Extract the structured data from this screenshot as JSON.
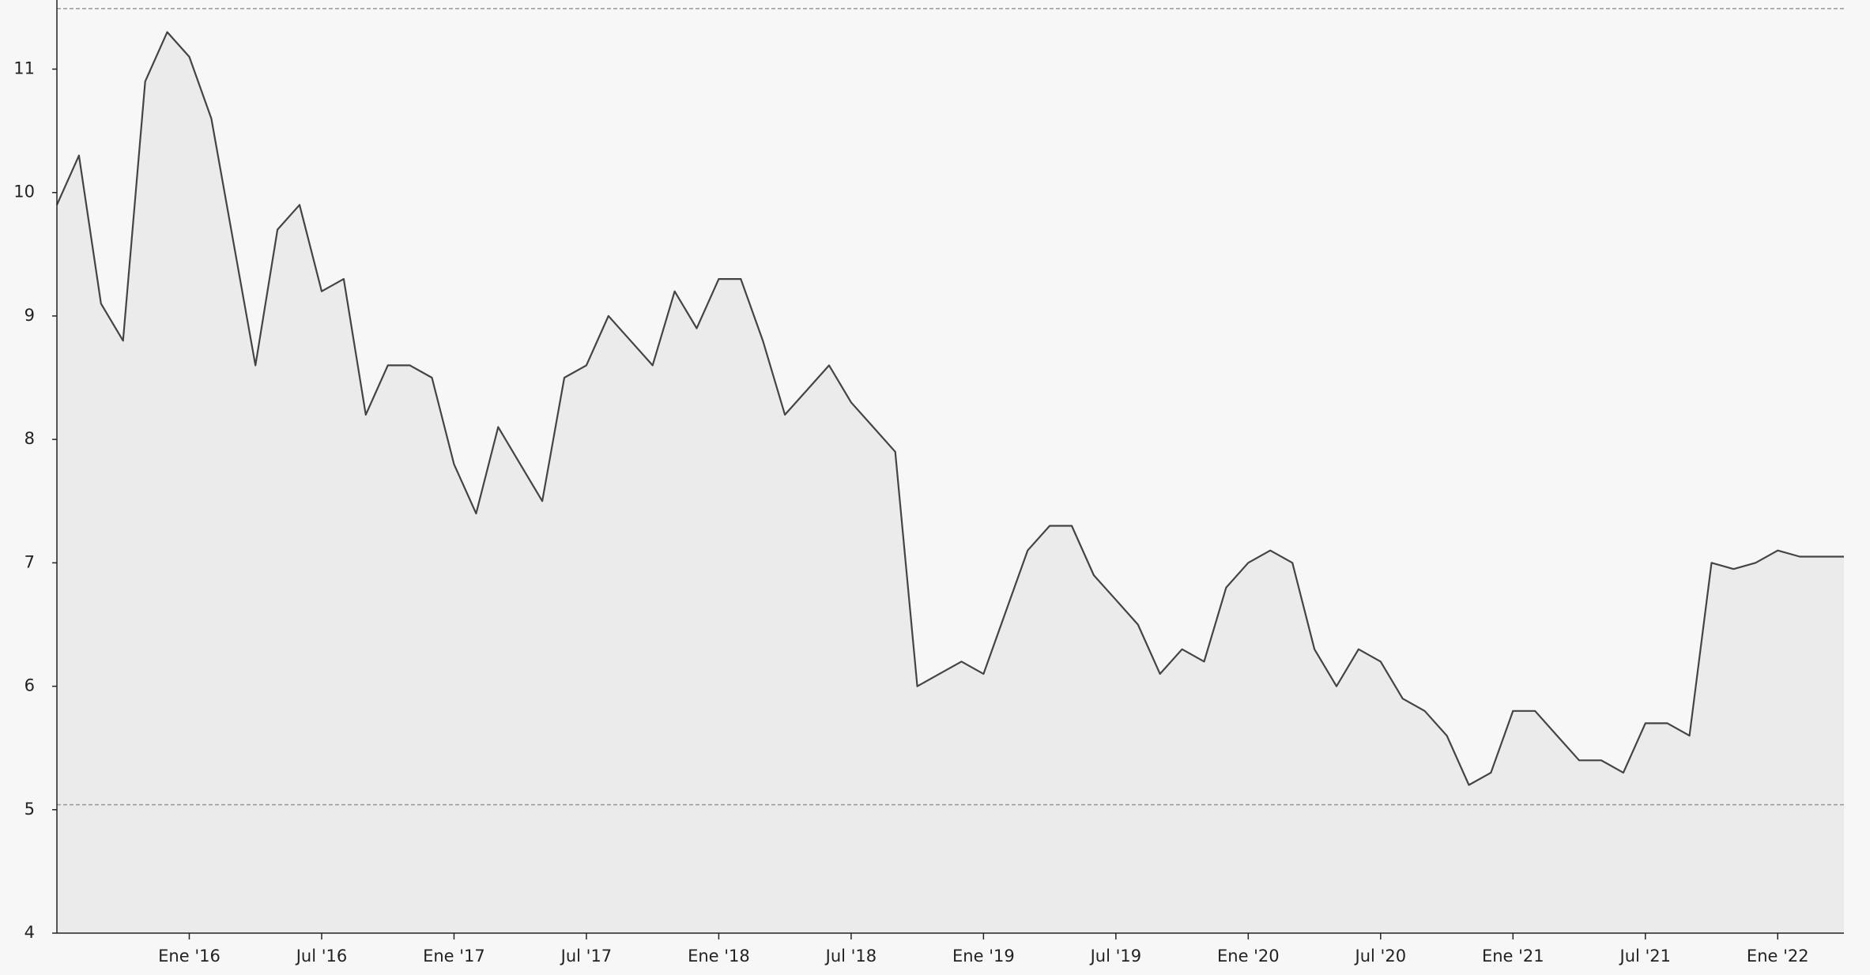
{
  "chart_data": {
    "type": "area",
    "x": [
      "2015-07",
      "2015-08",
      "2015-09",
      "2015-10",
      "2015-11",
      "2015-12",
      "2016-01",
      "2016-02",
      "2016-03",
      "2016-04",
      "2016-05",
      "2016-06",
      "2016-07",
      "2016-08",
      "2016-09",
      "2016-10",
      "2016-11",
      "2016-12",
      "2017-01",
      "2017-02",
      "2017-03",
      "2017-04",
      "2017-05",
      "2017-06",
      "2017-07",
      "2017-08",
      "2017-09",
      "2017-10",
      "2017-11",
      "2017-12",
      "2018-01",
      "2018-02",
      "2018-03",
      "2018-04",
      "2018-05",
      "2018-06",
      "2018-07",
      "2018-08",
      "2018-09",
      "2018-10",
      "2018-11",
      "2018-12",
      "2019-01",
      "2019-02",
      "2019-03",
      "2019-04",
      "2019-05",
      "2019-06",
      "2019-07",
      "2019-08",
      "2019-09",
      "2019-10",
      "2019-11",
      "2019-12",
      "2020-01",
      "2020-02",
      "2020-03",
      "2020-04",
      "2020-05",
      "2020-06",
      "2020-07",
      "2020-08",
      "2020-09",
      "2020-10",
      "2020-11",
      "2020-12",
      "2021-01",
      "2021-02",
      "2021-03",
      "2021-04",
      "2021-05",
      "2021-06",
      "2021-07",
      "2021-08",
      "2021-09",
      "2021-10",
      "2021-11",
      "2021-12",
      "2022-01",
      "2022-02",
      "2022-03",
      "2022-04"
    ],
    "values": [
      9.9,
      10.3,
      9.1,
      8.8,
      10.9,
      11.3,
      11.1,
      10.6,
      9.6,
      8.6,
      9.7,
      9.9,
      9.2,
      9.3,
      8.2,
      8.6,
      8.6,
      8.5,
      7.8,
      7.4,
      8.1,
      7.8,
      7.5,
      8.5,
      8.6,
      9.0,
      8.8,
      8.6,
      9.2,
      8.9,
      9.3,
      9.3,
      8.8,
      8.2,
      8.4,
      8.6,
      8.3,
      8.1,
      7.9,
      6.0,
      6.1,
      6.2,
      6.1,
      6.6,
      7.1,
      7.3,
      7.3,
      6.9,
      6.7,
      6.5,
      6.1,
      6.3,
      6.2,
      6.8,
      7.0,
      7.1,
      7.0,
      6.3,
      6.0,
      6.3,
      6.2,
      5.9,
      5.8,
      5.6,
      5.2,
      5.3,
      5.8,
      5.8,
      5.6,
      5.4,
      5.4,
      5.3,
      5.7,
      5.7,
      5.6,
      7.0,
      6.95,
      7.0,
      7.1,
      7.05,
      7.05,
      7.05
    ],
    "color": "#444444",
    "fill": "#ebebeb",
    "xlim": [
      "2015-07",
      "2022-04"
    ],
    "xticks": [
      {
        "value": "2016-01",
        "label": "Ene '16"
      },
      {
        "value": "2016-07",
        "label": "Jul '16"
      },
      {
        "value": "2017-01",
        "label": "Ene '17"
      },
      {
        "value": "2017-07",
        "label": "Jul '17"
      },
      {
        "value": "2018-01",
        "label": "Ene '18"
      },
      {
        "value": "2018-07",
        "label": "Jul '18"
      },
      {
        "value": "2019-01",
        "label": "Ene '19"
      },
      {
        "value": "2019-07",
        "label": "Jul '19"
      },
      {
        "value": "2020-01",
        "label": "Ene '20"
      },
      {
        "value": "2020-07",
        "label": "Jul '20"
      },
      {
        "value": "2021-01",
        "label": "Ene '21"
      },
      {
        "value": "2021-07",
        "label": "Jul '21"
      },
      {
        "value": "2022-01",
        "label": "Ene '22"
      }
    ],
    "ylim": [
      4,
      11.56
    ],
    "yticks": [
      4,
      5,
      6,
      7,
      8,
      9,
      10,
      11
    ],
    "reference_lines": [
      11.49,
      5.04
    ]
  }
}
